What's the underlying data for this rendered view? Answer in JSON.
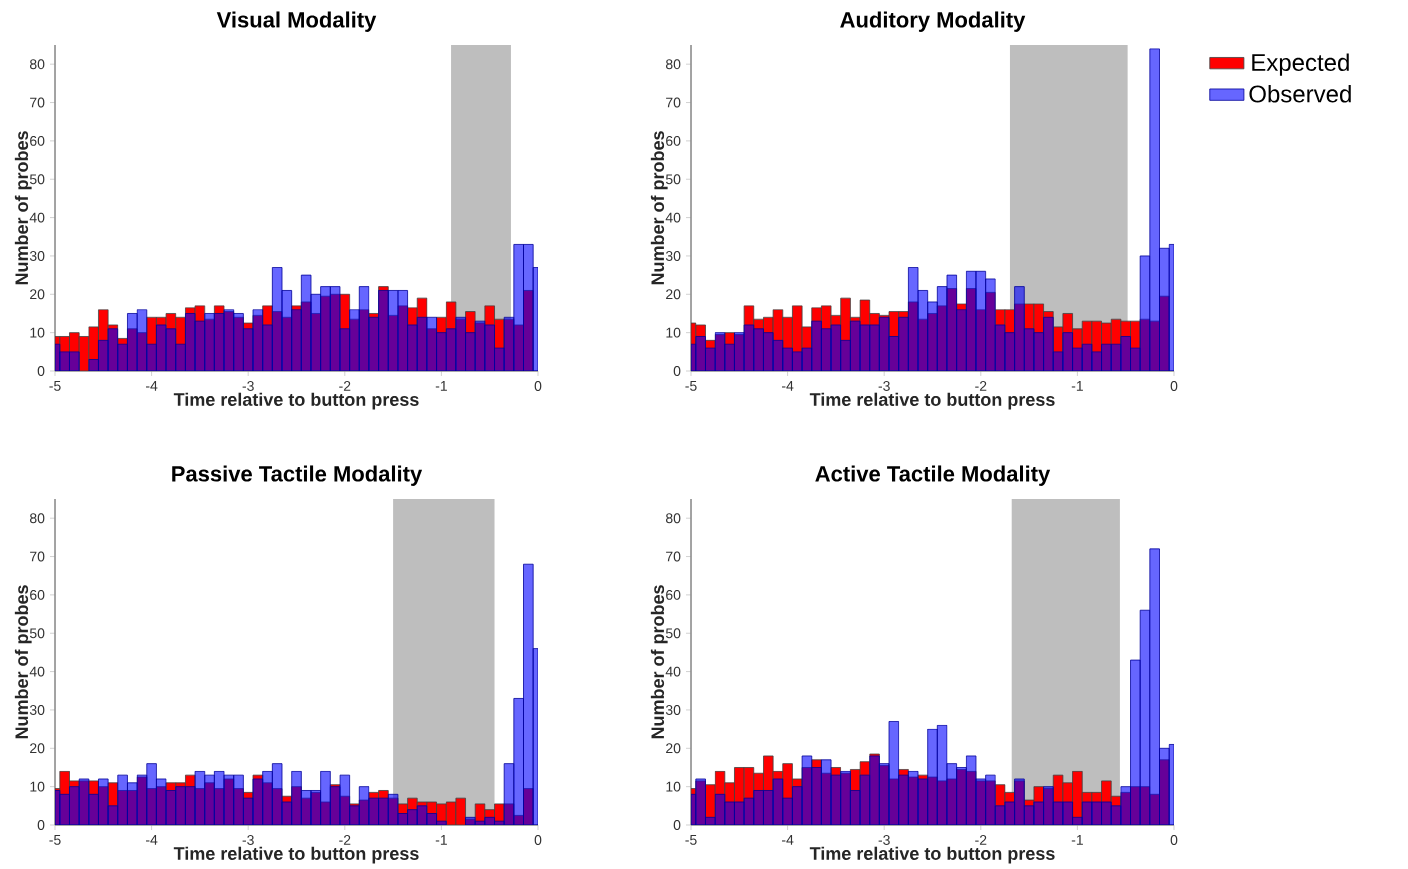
{
  "chart_data": [
    {
      "type": "histogram",
      "title": "Visual Modality",
      "xlabel": "Time relative to button press",
      "ylabel": "Number of probes",
      "bins": [
        -5,
        -4.95,
        -4.85,
        -4.75,
        -4.65,
        -4.55,
        -4.45,
        -4.35,
        -4.25,
        -4.15,
        -4.05,
        -3.95,
        -3.85,
        -3.75,
        -3.65,
        -3.55,
        -3.45,
        -3.35,
        -3.25,
        -3.15,
        -3.05,
        -2.95,
        -2.85,
        -2.75,
        -2.65,
        -2.55,
        -2.45,
        -2.35,
        -2.25,
        -2.15,
        -2.05,
        -1.95,
        -1.85,
        -1.75,
        -1.65,
        -1.55,
        -1.45,
        -1.35,
        -1.25,
        -1.15,
        -1.05,
        -0.95,
        -0.85,
        -0.75,
        -0.65,
        -0.55,
        -0.45,
        -0.35,
        -0.25,
        -0.15,
        -0.05,
        0
      ],
      "series": [
        {
          "color": "#ff0000",
          "values": [
            9,
            9,
            10,
            9,
            11.5,
            16,
            12,
            8.5,
            11,
            10,
            14,
            14,
            15,
            14,
            16.5,
            17,
            13.5,
            17,
            15.5,
            14,
            12.5,
            14.5,
            17,
            15.5,
            14,
            17,
            18,
            15,
            19.5,
            20,
            20,
            13.5,
            16,
            15,
            22,
            14.5,
            17,
            16.5,
            19,
            11,
            14,
            18,
            13.5,
            15.5,
            12.5,
            17,
            13.5,
            13.5,
            12,
            21,
            0
          ]
        },
        {
          "color": "#0000ff",
          "values": [
            7,
            5,
            5,
            0,
            3,
            8,
            11,
            7,
            15,
            16,
            7,
            12,
            11,
            7,
            15,
            13,
            15,
            15,
            16,
            15,
            11,
            16,
            12,
            27,
            21,
            16,
            25,
            20,
            22,
            22,
            11,
            16,
            22,
            14,
            21,
            21,
            21,
            12,
            14,
            14,
            10,
            11,
            14,
            10,
            13,
            12,
            6,
            14,
            33,
            33,
            27
          ]
        }
      ],
      "bands": [
        {
          "axis": "x",
          "from": -0.9,
          "to": -0.28,
          "color": "#bebebe"
        }
      ],
      "xlim": [
        -5,
        0
      ],
      "xticks": [
        -5,
        -4,
        -3,
        -2,
        -1,
        0
      ],
      "ylim": [
        0,
        85
      ],
      "yticks": [
        0,
        10,
        20,
        30,
        40,
        50,
        60,
        70,
        80
      ]
    },
    {
      "type": "histogram",
      "title": "Auditory Modality",
      "xlabel": "Time relative to button press",
      "ylabel": "Number of probes",
      "bins": [
        -5,
        -4.95,
        -4.85,
        -4.75,
        -4.65,
        -4.55,
        -4.45,
        -4.35,
        -4.25,
        -4.15,
        -4.05,
        -3.95,
        -3.85,
        -3.75,
        -3.65,
        -3.55,
        -3.45,
        -3.35,
        -3.25,
        -3.15,
        -3.05,
        -2.95,
        -2.85,
        -2.75,
        -2.65,
        -2.55,
        -2.45,
        -2.35,
        -2.25,
        -2.15,
        -2.05,
        -1.95,
        -1.85,
        -1.75,
        -1.65,
        -1.55,
        -1.45,
        -1.35,
        -1.25,
        -1.15,
        -1.05,
        -0.95,
        -0.85,
        -0.75,
        -0.65,
        -0.55,
        -0.45,
        -0.35,
        -0.25,
        -0.15,
        -0.05,
        0
      ],
      "series": [
        {
          "name": "Expected",
          "color": "#ff0000",
          "values": [
            12.5,
            12,
            8,
            9.5,
            10,
            9.5,
            17,
            13.5,
            14,
            16,
            14,
            17,
            11.5,
            16.5,
            17,
            14.5,
            19,
            14,
            18.5,
            15,
            14.5,
            15.5,
            15.5,
            18,
            13.5,
            15,
            17,
            21.5,
            17.5,
            21.5,
            16,
            20.5,
            16,
            16,
            17.5,
            17.5,
            17.5,
            15.5,
            11.5,
            15,
            11,
            13,
            13,
            12.5,
            13.5,
            13,
            13,
            13.5,
            13,
            19.5,
            0
          ]
        },
        {
          "name": "Observed",
          "color": "#0000ff",
          "values": [
            7,
            9,
            6,
            10,
            7,
            10,
            12,
            11,
            10,
            8,
            6,
            5,
            6,
            13,
            11,
            12,
            8,
            13,
            12,
            12,
            14,
            9,
            14,
            27,
            21,
            18,
            22,
            25,
            16,
            26,
            26,
            24,
            12,
            10,
            22,
            11,
            10,
            14,
            5,
            10,
            6,
            7,
            5,
            7,
            7,
            9,
            6,
            30,
            84,
            32,
            33
          ]
        }
      ],
      "bands": [
        {
          "axis": "x",
          "from": -1.7,
          "to": -0.48,
          "color": "#bebebe"
        }
      ],
      "legend": "top right",
      "xlim": [
        -5,
        0
      ],
      "xticks": [
        -5,
        -4,
        -3,
        -2,
        -1,
        0
      ],
      "ylim": [
        0,
        85
      ],
      "yticks": [
        0,
        10,
        20,
        30,
        40,
        50,
        60,
        70,
        80
      ]
    },
    {
      "type": "histogram",
      "title": "Passive Tactile Modality",
      "xlabel": "Time relative to button press",
      "ylabel": "Number of probes",
      "bins": [
        -5,
        -4.95,
        -4.85,
        -4.75,
        -4.65,
        -4.55,
        -4.45,
        -4.35,
        -4.25,
        -4.15,
        -4.05,
        -3.95,
        -3.85,
        -3.75,
        -3.65,
        -3.55,
        -3.45,
        -3.35,
        -3.25,
        -3.15,
        -3.05,
        -2.95,
        -2.85,
        -2.75,
        -2.65,
        -2.55,
        -2.45,
        -2.35,
        -2.25,
        -2.15,
        -2.05,
        -1.95,
        -1.85,
        -1.75,
        -1.65,
        -1.55,
        -1.45,
        -1.35,
        -1.25,
        -1.15,
        -1.05,
        -0.95,
        -0.85,
        -0.75,
        -0.65,
        -0.55,
        -0.45,
        -0.35,
        -0.25,
        -0.15,
        -0.05,
        0
      ],
      "series": [
        {
          "color": "#ff0000",
          "values": [
            9.5,
            14,
            11.5,
            11.5,
            11.5,
            10,
            11,
            9,
            9,
            12.5,
            9.5,
            10,
            11,
            11,
            13,
            9.5,
            11,
            9.5,
            12,
            9.5,
            8.5,
            13,
            11,
            9.5,
            7.5,
            10,
            7,
            8.5,
            6,
            10.5,
            7.5,
            5.5,
            6.5,
            8.5,
            9,
            7,
            5.5,
            7,
            6,
            6,
            5.5,
            6,
            7,
            1.5,
            5.5,
            4,
            5.5,
            5.5,
            2.5,
            9.5,
            0
          ]
        },
        {
          "color": "#0000ff",
          "values": [
            9,
            8,
            10,
            12,
            8,
            12,
            5,
            13,
            11,
            13,
            16,
            12,
            9,
            10,
            10,
            14,
            13,
            14,
            13,
            13,
            7,
            12,
            14,
            16,
            6,
            14,
            9,
            9,
            14,
            10,
            13,
            5,
            10,
            7,
            7,
            8,
            3,
            4,
            5,
            3,
            1,
            0,
            0,
            2,
            1,
            2,
            1,
            16,
            33,
            68,
            46
          ]
        }
      ],
      "bands": [
        {
          "axis": "x",
          "from": -1.5,
          "to": -0.45,
          "color": "#bebebe"
        }
      ],
      "xlim": [
        -5,
        0
      ],
      "xticks": [
        -5,
        -4,
        -3,
        -2,
        -1,
        0
      ],
      "ylim": [
        0,
        85
      ],
      "yticks": [
        0,
        10,
        20,
        30,
        40,
        50,
        60,
        70,
        80
      ]
    },
    {
      "type": "histogram",
      "title": "Active Tactile Modality",
      "xlabel": "Time relative to button press",
      "ylabel": "Number of probes",
      "bins": [
        -5,
        -4.95,
        -4.85,
        -4.75,
        -4.65,
        -4.55,
        -4.45,
        -4.35,
        -4.25,
        -4.15,
        -4.05,
        -3.95,
        -3.85,
        -3.75,
        -3.65,
        -3.55,
        -3.45,
        -3.35,
        -3.25,
        -3.15,
        -3.05,
        -2.95,
        -2.85,
        -2.75,
        -2.65,
        -2.55,
        -2.45,
        -2.35,
        -2.25,
        -2.15,
        -2.05,
        -1.95,
        -1.85,
        -1.75,
        -1.65,
        -1.55,
        -1.45,
        -1.35,
        -1.25,
        -1.15,
        -1.05,
        -0.95,
        -0.85,
        -0.75,
        -0.65,
        -0.55,
        -0.45,
        -0.35,
        -0.25,
        -0.15,
        -0.05,
        0
      ],
      "series": [
        {
          "color": "#ff0000",
          "values": [
            9.5,
            11.5,
            10.5,
            14,
            11,
            15,
            15,
            13.5,
            18,
            14,
            16,
            12,
            15,
            17,
            13.5,
            15,
            13.5,
            14.5,
            16.5,
            18.5,
            15.5,
            12,
            14.5,
            12.5,
            13,
            12.5,
            11.5,
            12,
            14.5,
            14,
            11.5,
            11.5,
            10.5,
            8.5,
            11.5,
            6.5,
            10,
            9.5,
            13,
            11,
            14,
            8.5,
            8.5,
            11.5,
            7.5,
            8.5,
            10,
            10,
            8,
            17,
            0
          ]
        },
        {
          "color": "#0000ff",
          "values": [
            8,
            12,
            2,
            8,
            6,
            6,
            7,
            9,
            9,
            12,
            7,
            10,
            18,
            15,
            17,
            13,
            14,
            9,
            13,
            18,
            16,
            27,
            13,
            14,
            12,
            25,
            26,
            16,
            15,
            18,
            12,
            13,
            5,
            6,
            12,
            5,
            6,
            10,
            6,
            6,
            2,
            6,
            6,
            6,
            5,
            10,
            43,
            56,
            72,
            20,
            21
          ]
        }
      ],
      "bands": [
        {
          "axis": "x",
          "from": -1.68,
          "to": -0.56,
          "color": "#bebebe"
        }
      ],
      "xlim": [
        -5,
        0
      ],
      "xticks": [
        -5,
        -4,
        -3,
        -2,
        -1,
        0
      ],
      "ylim": [
        0,
        85
      ],
      "yticks": [
        0,
        10,
        20,
        30,
        40,
        50,
        60,
        70,
        80
      ]
    }
  ]
}
